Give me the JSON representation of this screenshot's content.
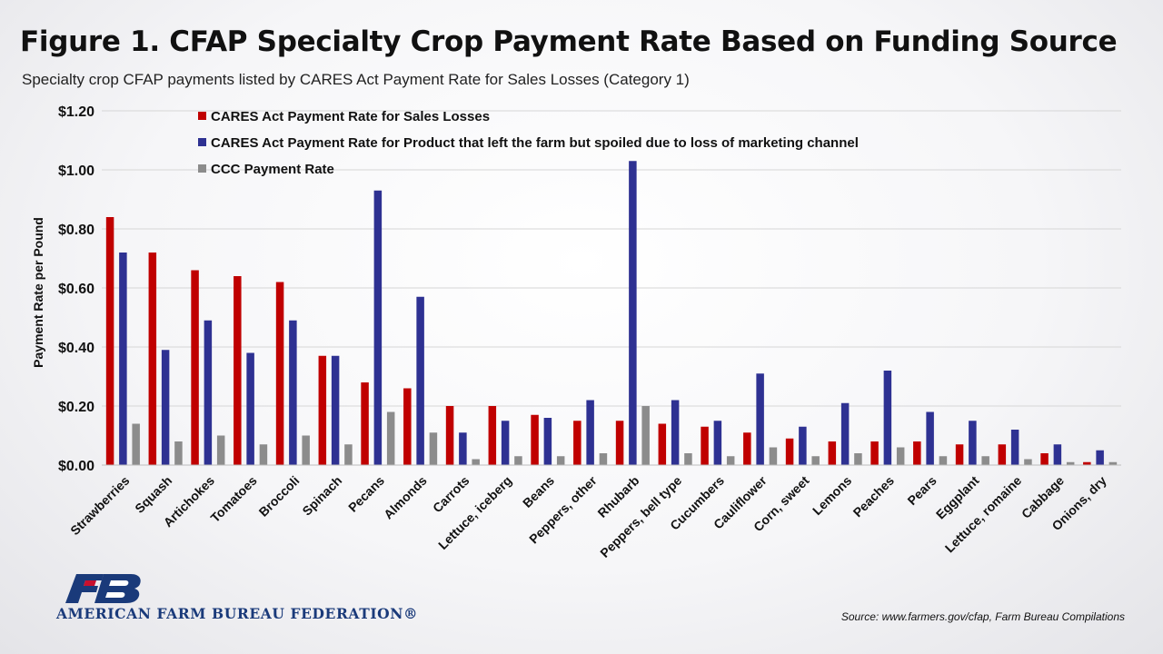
{
  "header": {
    "title": "Figure 1. CFAP Specialty Crop Payment Rate Based on Funding Source",
    "subtitle": "Specialty crop CFAP payments listed by CARES Act Payment Rate for Sales Losses (Category 1)"
  },
  "footer": {
    "logo_text": "AMERICAN FARM BUREAU FEDERATION®",
    "source": "Source: www.farmers.gov/cfap, Farm Bureau Compilations"
  },
  "chart_data": {
    "type": "bar",
    "title": "Figure 1. CFAP Specialty Crop Payment Rate Based on Funding Source",
    "subtitle": "Specialty crop CFAP payments listed by CARES Act Payment Rate for Sales Losses (Category 1)",
    "xlabel": "",
    "ylabel": "Payment Rate per Pound",
    "ylim": [
      0,
      1.2
    ],
    "yticks": [
      "$0.00",
      "$0.20",
      "$0.40",
      "$0.60",
      "$0.80",
      "$1.00",
      "$1.20"
    ],
    "grid": true,
    "legend_position": "top-left",
    "categories": [
      "Strawberries",
      "Squash",
      "Artichokes",
      "Tomatoes",
      "Broccoli",
      "Spinach",
      "Pecans",
      "Almonds",
      "Carrots",
      "Lettuce, iceberg",
      "Beans",
      "Peppers, other",
      "Rhubarb",
      "Peppers, bell type",
      "Cucumbers",
      "Cauliflower",
      "Corn, sweet",
      "Lemons",
      "Peaches",
      "Pears",
      "Eggplant",
      "Lettuce, romaine",
      "Cabbage",
      "Onions, dry"
    ],
    "series": [
      {
        "name": "CARES Act Payment Rate for Sales Losses",
        "color": "#c00000",
        "values": [
          0.84,
          0.72,
          0.66,
          0.64,
          0.62,
          0.37,
          0.28,
          0.26,
          0.2,
          0.2,
          0.17,
          0.15,
          0.15,
          0.14,
          0.13,
          0.11,
          0.09,
          0.08,
          0.08,
          0.08,
          0.07,
          0.07,
          0.04,
          0.01
        ]
      },
      {
        "name": "CARES Act Payment Rate for Product that left the farm but spoiled due to loss of marketing channel",
        "color": "#2e3192",
        "values": [
          0.72,
          0.39,
          0.49,
          0.38,
          0.49,
          0.37,
          0.93,
          0.57,
          0.11,
          0.15,
          0.16,
          0.22,
          1.03,
          0.22,
          0.15,
          0.31,
          0.13,
          0.21,
          0.32,
          0.18,
          0.15,
          0.12,
          0.07,
          0.05
        ]
      },
      {
        "name": "CCC Payment Rate",
        "color": "#8c8c8c",
        "values": [
          0.14,
          0.08,
          0.1,
          0.07,
          0.1,
          0.07,
          0.18,
          0.11,
          0.02,
          0.03,
          0.03,
          0.04,
          0.2,
          0.04,
          0.03,
          0.06,
          0.03,
          0.04,
          0.06,
          0.03,
          0.03,
          0.02,
          0.01,
          0.01
        ]
      }
    ]
  }
}
